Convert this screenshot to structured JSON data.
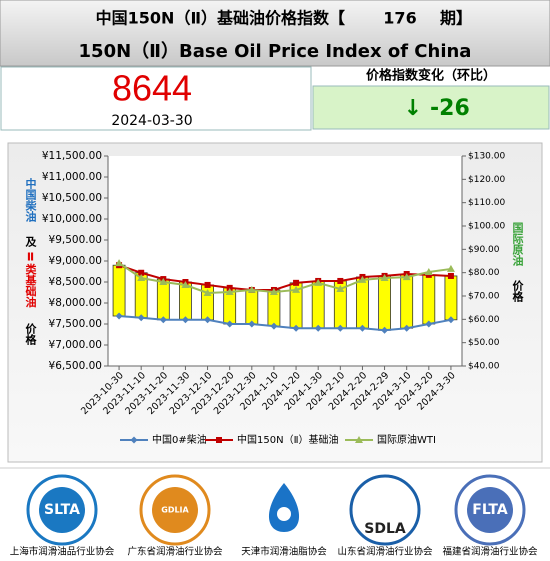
{
  "header": {
    "title_prefix": "中国150N（Ⅱ）基础油价格指数【",
    "issue": 176,
    "title_suffix": "期】",
    "title_en": "150N（Ⅱ）Base Oil Price Index of China"
  },
  "index": {
    "value": 8644,
    "date": "2024-03-30",
    "change_label": "价格指数变化（环比）",
    "change_arrow": "↓",
    "change": -26
  },
  "chart_data": {
    "type": "line",
    "ylabel_parts": [
      {
        "text": "中国柴油",
        "color": "#1f6fbf"
      },
      {
        "text": "及",
        "color": "#000000"
      },
      {
        "text": "Ⅱ类基础油",
        "color": "#e00000"
      },
      {
        "text": "价格",
        "color": "#000000"
      }
    ],
    "y2label_parts": [
      {
        "text": "国际原油",
        "color": "#3aa33a"
      },
      {
        "text": "价格",
        "color": "#000000"
      }
    ],
    "categories": [
      "2023-10-30",
      "2023-11-10",
      "2023-11-20",
      "2023-11-30",
      "2023-12-10",
      "2023-12-20",
      "2023-12-30",
      "2024-1-10",
      "2024-1-20",
      "2024-1-30",
      "2024-2-10",
      "2024-2-20",
      "2024-2-29",
      "2024-3-10",
      "2024-3-20",
      "2024-3-30"
    ],
    "series": [
      {
        "name": "中国0#柴油",
        "color": "#4f81bd",
        "marker": "diamond",
        "values": [
          7690,
          7650,
          7600,
          7600,
          7600,
          7500,
          7500,
          7450,
          7400,
          7400,
          7400,
          7400,
          7350,
          7400,
          7500,
          7600
        ]
      },
      {
        "name": "中国150N（Ⅱ）基础油",
        "color": "#c00000",
        "marker": "square",
        "values": [
          8900,
          8720,
          8570,
          8500,
          8430,
          8360,
          8310,
          8310,
          8480,
          8525,
          8525,
          8620,
          8645,
          8690,
          8670,
          8644
        ]
      },
      {
        "name": "国际原油WTI",
        "color": "#9bbb59",
        "marker": "triangle",
        "axis": "y2",
        "values": [
          84.1,
          77.7,
          76.0,
          74.7,
          71.3,
          71.7,
          72.6,
          71.7,
          72.6,
          75.6,
          73.0,
          76.9,
          77.7,
          78.1,
          80.3,
          81.6
        ]
      }
    ],
    "updown_bars": {
      "color": "#ffff00",
      "border": "#333333"
    },
    "ylim": [
      6500,
      11500
    ],
    "yticks": [
      {
        "value": 6500,
        "label": "¥6,500.00"
      },
      {
        "value": 7000,
        "label": "¥7,000.00"
      },
      {
        "value": 7500,
        "label": "¥7,500.00"
      },
      {
        "value": 8000,
        "label": "¥8,000.00"
      },
      {
        "value": 8500,
        "label": "¥8,500.00"
      },
      {
        "value": 9000,
        "label": "¥9,000.00"
      },
      {
        "value": 9500,
        "label": "¥9,500.00"
      },
      {
        "value": 10000,
        "label": "¥10,000.00"
      },
      {
        "value": 10500,
        "label": "¥10,500.00"
      },
      {
        "value": 11000,
        "label": "¥11,000.00"
      },
      {
        "value": 11500,
        "label": "¥11,500.00"
      }
    ],
    "y2lim": [
      40,
      130
    ],
    "y2ticks": [
      {
        "value": 40,
        "label": "$40.00"
      },
      {
        "value": 50,
        "label": "$50.00"
      },
      {
        "value": 60,
        "label": "$60.00"
      },
      {
        "value": 70,
        "label": "$70.00"
      },
      {
        "value": 80,
        "label": "$80.00"
      },
      {
        "value": 90,
        "label": "$90.00"
      },
      {
        "value": 100,
        "label": "$100.00"
      },
      {
        "value": 110,
        "label": "$110.00"
      },
      {
        "value": 120,
        "label": "$120.00"
      },
      {
        "value": 130,
        "label": "$130.00"
      }
    ],
    "legend": "bottom"
  },
  "footer": {
    "orgs": [
      {
        "logo": "SLTA",
        "name": "上海市润滑油品行业协会"
      },
      {
        "logo": "GDLIA",
        "name": "广东省润滑油行业协会"
      },
      {
        "name": "天津市润滑油脂协会"
      },
      {
        "logo": "SDLA",
        "name": "山东省润滑油行业协会"
      },
      {
        "logo": "FLTA",
        "name": "福建省润滑油行业协会"
      }
    ]
  }
}
